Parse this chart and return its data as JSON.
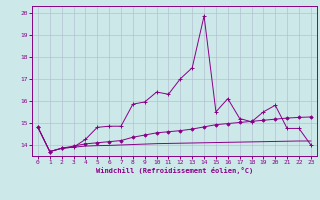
{
  "xlabel": "Windchill (Refroidissement éolien,°C)",
  "xlim": [
    -0.5,
    23.5
  ],
  "ylim": [
    13.5,
    20.3
  ],
  "yticks": [
    14,
    15,
    16,
    17,
    18,
    19,
    20
  ],
  "xticks": [
    0,
    1,
    2,
    3,
    4,
    5,
    6,
    7,
    8,
    9,
    10,
    11,
    12,
    13,
    14,
    15,
    16,
    17,
    18,
    19,
    20,
    21,
    22,
    23
  ],
  "bg_color": "#cce8e8",
  "grid_color": "#b0b8d0",
  "line_color": "#880088",
  "series1_x": [
    0,
    1,
    2,
    3,
    4,
    5,
    6,
    7,
    8,
    9,
    10,
    11,
    12,
    13,
    14,
    15,
    16,
    17,
    18,
    19,
    20,
    21,
    22,
    23
  ],
  "series1_y": [
    14.8,
    13.7,
    13.85,
    13.9,
    14.25,
    14.8,
    14.85,
    14.85,
    15.85,
    15.95,
    16.4,
    16.3,
    17.0,
    17.5,
    19.85,
    15.5,
    16.1,
    15.2,
    15.05,
    15.5,
    15.8,
    14.75,
    14.75,
    14.0
  ],
  "series2_x": [
    0,
    1,
    2,
    3,
    4,
    5,
    6,
    7,
    8,
    9,
    10,
    11,
    12,
    13,
    14,
    15,
    16,
    17,
    18,
    19,
    20,
    21,
    22,
    23
  ],
  "series2_y": [
    14.8,
    13.7,
    13.85,
    13.95,
    14.05,
    14.1,
    14.15,
    14.2,
    14.35,
    14.45,
    14.55,
    14.6,
    14.65,
    14.72,
    14.82,
    14.92,
    14.97,
    15.02,
    15.07,
    15.12,
    15.17,
    15.22,
    15.25,
    15.27
  ],
  "series3_x": [
    0,
    1,
    2,
    3,
    4,
    5,
    6,
    7,
    8,
    9,
    10,
    11,
    12,
    13,
    14,
    15,
    16,
    17,
    18,
    19,
    20,
    21,
    22,
    23
  ],
  "series3_y": [
    14.8,
    13.7,
    13.85,
    13.9,
    13.95,
    13.97,
    13.98,
    14.0,
    14.02,
    14.04,
    14.06,
    14.07,
    14.08,
    14.09,
    14.1,
    14.11,
    14.12,
    14.13,
    14.14,
    14.15,
    14.16,
    14.17,
    14.18,
    14.18
  ]
}
